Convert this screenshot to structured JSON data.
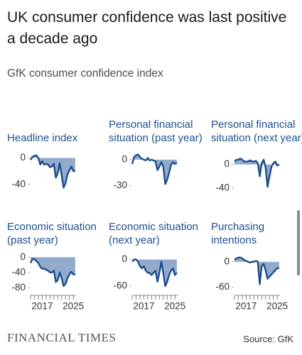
{
  "header": {
    "title": "UK consumer confidence was last positive a decade ago",
    "subtitle": "GfK consumer confidence index"
  },
  "chart_data": [
    {
      "type": "area",
      "title": "Headline index",
      "color": "#1e4d8c",
      "x": [
        2014,
        2014.5,
        2015,
        2015.5,
        2016,
        2016.5,
        2017,
        2017.5,
        2018,
        2018.5,
        2019,
        2019.5,
        2020,
        2020.5,
        2021,
        2021.5,
        2022,
        2022.5,
        2023,
        2023.5,
        2024,
        2024.5,
        2025,
        2025.5
      ],
      "values": [
        -3,
        2,
        3,
        4,
        0,
        -10,
        -5,
        -10,
        -9,
        -10,
        -14,
        -13,
        -9,
        -30,
        -23,
        -8,
        -26,
        -45,
        -38,
        -25,
        -19,
        -13,
        -20,
        -19
      ],
      "xlim": [
        2014,
        2025.7
      ],
      "ylim": [
        8,
        -50
      ],
      "yticks": [
        0,
        -40
      ]
    },
    {
      "type": "area",
      "title": "Personal financial situation (past year)",
      "color": "#1e4d8c",
      "x": [
        2014,
        2014.5,
        2015,
        2015.5,
        2016,
        2016.5,
        2017,
        2017.5,
        2018,
        2018.5,
        2019,
        2019.5,
        2020,
        2020.5,
        2021,
        2021.5,
        2022,
        2022.5,
        2023,
        2023.5,
        2024,
        2024.5,
        2025,
        2025.5
      ],
      "values": [
        -5,
        3,
        5,
        6,
        3,
        1,
        0,
        -1,
        2,
        -1,
        0,
        -1,
        -2,
        -12,
        -8,
        -3,
        -8,
        -28,
        -23,
        -15,
        -6,
        -3,
        -5,
        -4
      ],
      "xlim": [
        2014,
        2025.7
      ],
      "ylim": [
        8,
        -36
      ],
      "yticks": [
        0,
        -30
      ]
    },
    {
      "type": "area",
      "title": "Personal financial situation (next year)",
      "color": "#1e4d8c",
      "x": [
        2014,
        2014.5,
        2015,
        2015.5,
        2016,
        2016.5,
        2017,
        2017.5,
        2018,
        2018.5,
        2019,
        2019.5,
        2020,
        2020.5,
        2021,
        2021.5,
        2022,
        2022.5,
        2023,
        2023.5,
        2024,
        2024.5,
        2025,
        2025.5
      ],
      "values": [
        5,
        8,
        8,
        10,
        8,
        5,
        5,
        5,
        7,
        5,
        5,
        6,
        2,
        -20,
        2,
        8,
        -5,
        -38,
        -20,
        -4,
        2,
        5,
        -2,
        0
      ],
      "xlim": [
        2014,
        2025.7
      ],
      "ylim": [
        20,
        -45
      ],
      "yticks": [
        0,
        -40
      ]
    },
    {
      "type": "area",
      "title": "Economic situation (past year)",
      "color": "#1e4d8c",
      "x": [
        2014,
        2014.5,
        2015,
        2015.5,
        2016,
        2016.5,
        2017,
        2017.5,
        2018,
        2018.5,
        2019,
        2019.5,
        2020,
        2020.5,
        2021,
        2021.5,
        2022,
        2022.5,
        2023,
        2023.5,
        2024,
        2024.5,
        2025,
        2025.5
      ],
      "values": [
        -15,
        -5,
        -5,
        -10,
        -15,
        -25,
        -30,
        -30,
        -33,
        -35,
        -40,
        -40,
        -35,
        -65,
        -60,
        -40,
        -55,
        -75,
        -70,
        -55,
        -45,
        -38,
        -45,
        -45
      ],
      "xlim": [
        2014,
        2025.7
      ],
      "ylim": [
        8,
        -85
      ],
      "yticks": [
        0,
        -40,
        -80
      ],
      "xticks": [
        2017,
        2025
      ],
      "xminorticks": [
        2014,
        2015,
        2016,
        2017,
        2018,
        2019,
        2020,
        2021,
        2022,
        2023,
        2024,
        2025
      ]
    },
    {
      "type": "area",
      "title": "Economic situation (next year)",
      "color": "#1e4d8c",
      "x": [
        2014,
        2014.5,
        2015,
        2015.5,
        2016,
        2016.5,
        2017,
        2017.5,
        2018,
        2018.5,
        2019,
        2019.5,
        2020,
        2020.5,
        2021,
        2021.5,
        2022,
        2022.5,
        2023,
        2023.5,
        2024,
        2024.5,
        2025,
        2025.5
      ],
      "values": [
        -5,
        0,
        0,
        -5,
        -15,
        -20,
        -15,
        -25,
        -30,
        -30,
        -35,
        -30,
        -25,
        -50,
        -30,
        -5,
        -30,
        -60,
        -50,
        -35,
        -25,
        -20,
        -35,
        -30
      ],
      "xlim": [
        2014,
        2025.7
      ],
      "ylim": [
        12,
        -68
      ],
      "yticks": [
        0,
        -60
      ],
      "xticks": [
        2017,
        2025
      ],
      "xminorticks": [
        2014,
        2015,
        2016,
        2017,
        2018,
        2019,
        2020,
        2021,
        2022,
        2023,
        2024,
        2025
      ]
    },
    {
      "type": "area",
      "title": "Purchasing intentions",
      "color": "#1e4d8c",
      "x": [
        2014,
        2014.5,
        2015,
        2015.5,
        2016,
        2016.5,
        2017,
        2017.5,
        2018,
        2018.5,
        2019,
        2019.5,
        2020,
        2020.5,
        2021,
        2021.5,
        2022,
        2022.5,
        2023,
        2023.5,
        2024,
        2024.5,
        2025,
        2025.5
      ],
      "values": [
        5,
        8,
        10,
        10,
        8,
        4,
        2,
        0,
        -2,
        0,
        0,
        2,
        0,
        -53,
        -10,
        -5,
        -20,
        -40,
        -35,
        -30,
        -25,
        -20,
        -15,
        -15
      ],
      "xlim": [
        2014,
        2025.7
      ],
      "ylim": [
        18,
        -66
      ],
      "yticks": [
        0,
        -60
      ],
      "xticks": [
        2017,
        2025
      ],
      "xminorticks": [
        2014,
        2015,
        2016,
        2017,
        2018,
        2019,
        2020,
        2021,
        2022,
        2023,
        2024,
        2025
      ]
    }
  ],
  "footer": {
    "brand": "FINANCIAL TIMES",
    "source": "Source: GfK"
  }
}
